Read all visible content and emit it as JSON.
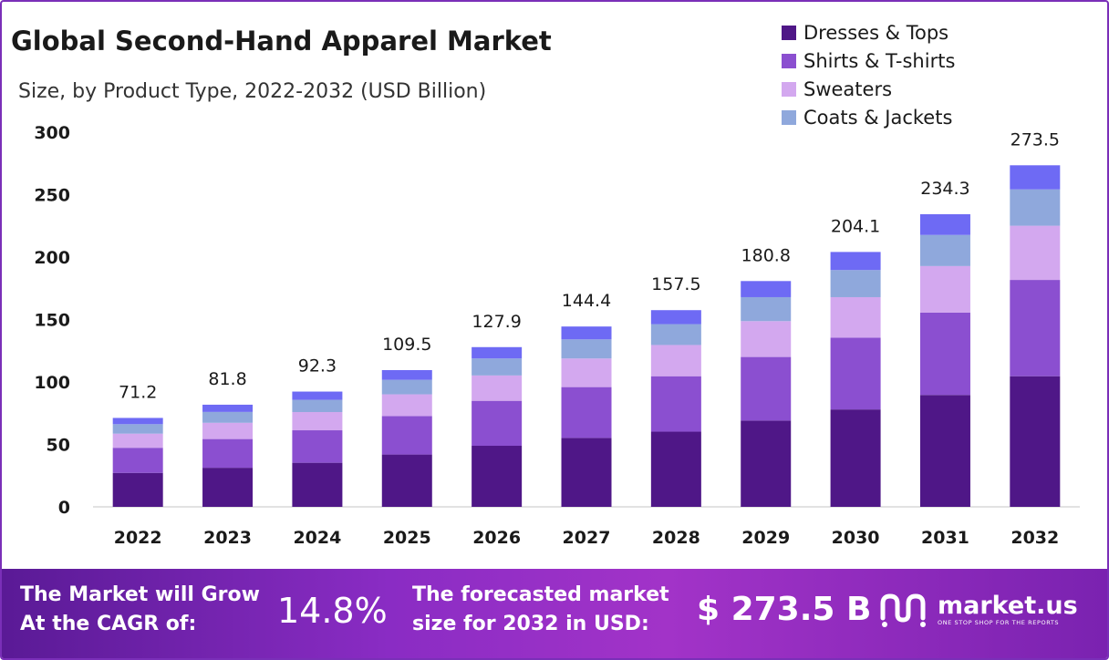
{
  "title": "Global Second-Hand Apparel Market",
  "subtitle": "Size, by Product Type, 2022-2032 (USD Billion)",
  "colors": {
    "dresses_tops": "#4f1787",
    "shirts_tshirts": "#8b4fd0",
    "sweaters": "#d3a8ef",
    "coats_jackets": "#8fa8dc",
    "top_segment": "#6e6af4",
    "footer_bg": "#8a2cc4"
  },
  "chart_data": {
    "type": "bar",
    "stacked": true,
    "categories": [
      "2022",
      "2023",
      "2024",
      "2025",
      "2026",
      "2027",
      "2028",
      "2029",
      "2030",
      "2031",
      "2032"
    ],
    "series": [
      {
        "name": "Dresses & Tops",
        "values": [
          27.2,
          31.3,
          35.3,
          41.9,
          48.9,
          55.2,
          60.2,
          69.1,
          78.0,
          89.6,
          104.6
        ]
      },
      {
        "name": "Shirts & T-shirts",
        "values": [
          20.1,
          23.0,
          26.0,
          30.8,
          36.0,
          40.7,
          44.4,
          50.9,
          57.5,
          66.0,
          77.1
        ]
      },
      {
        "name": "Sweaters",
        "values": [
          11.3,
          13.0,
          14.6,
          17.4,
          20.3,
          22.9,
          25.0,
          28.7,
          32.4,
          37.2,
          43.4
        ]
      },
      {
        "name": "Coats & Jackets",
        "values": [
          7.6,
          8.7,
          9.8,
          11.6,
          13.6,
          15.3,
          16.7,
          19.2,
          21.7,
          24.9,
          29.1
        ]
      },
      {
        "name": "",
        "values": [
          5.0,
          5.8,
          6.6,
          7.8,
          9.1,
          10.3,
          11.2,
          12.9,
          14.5,
          16.6,
          19.3
        ]
      }
    ],
    "totals": [
      "71.2",
      "81.8",
      "92.3",
      "109.5",
      "127.9",
      "144.4",
      "157.5",
      "180.8",
      "204.1",
      "234.3",
      "273.5"
    ],
    "ylim": [
      0,
      300
    ],
    "yticks": [
      "0",
      "50",
      "100",
      "150",
      "200",
      "250",
      "300"
    ],
    "xlabel": "",
    "ylabel": "",
    "grid": false,
    "legend_position": "top-right"
  },
  "footer": {
    "cagr_line1": "The Market will Grow",
    "cagr_line2": "At the CAGR of:",
    "cagr_value": "14.8%",
    "forecast_line1": "The forecasted market",
    "forecast_line2": "size for 2032 in USD:",
    "forecast_value": "$ 273.5 B",
    "brand_name": "market.us",
    "brand_tagline": "ONE STOP SHOP FOR THE REPORTS"
  }
}
